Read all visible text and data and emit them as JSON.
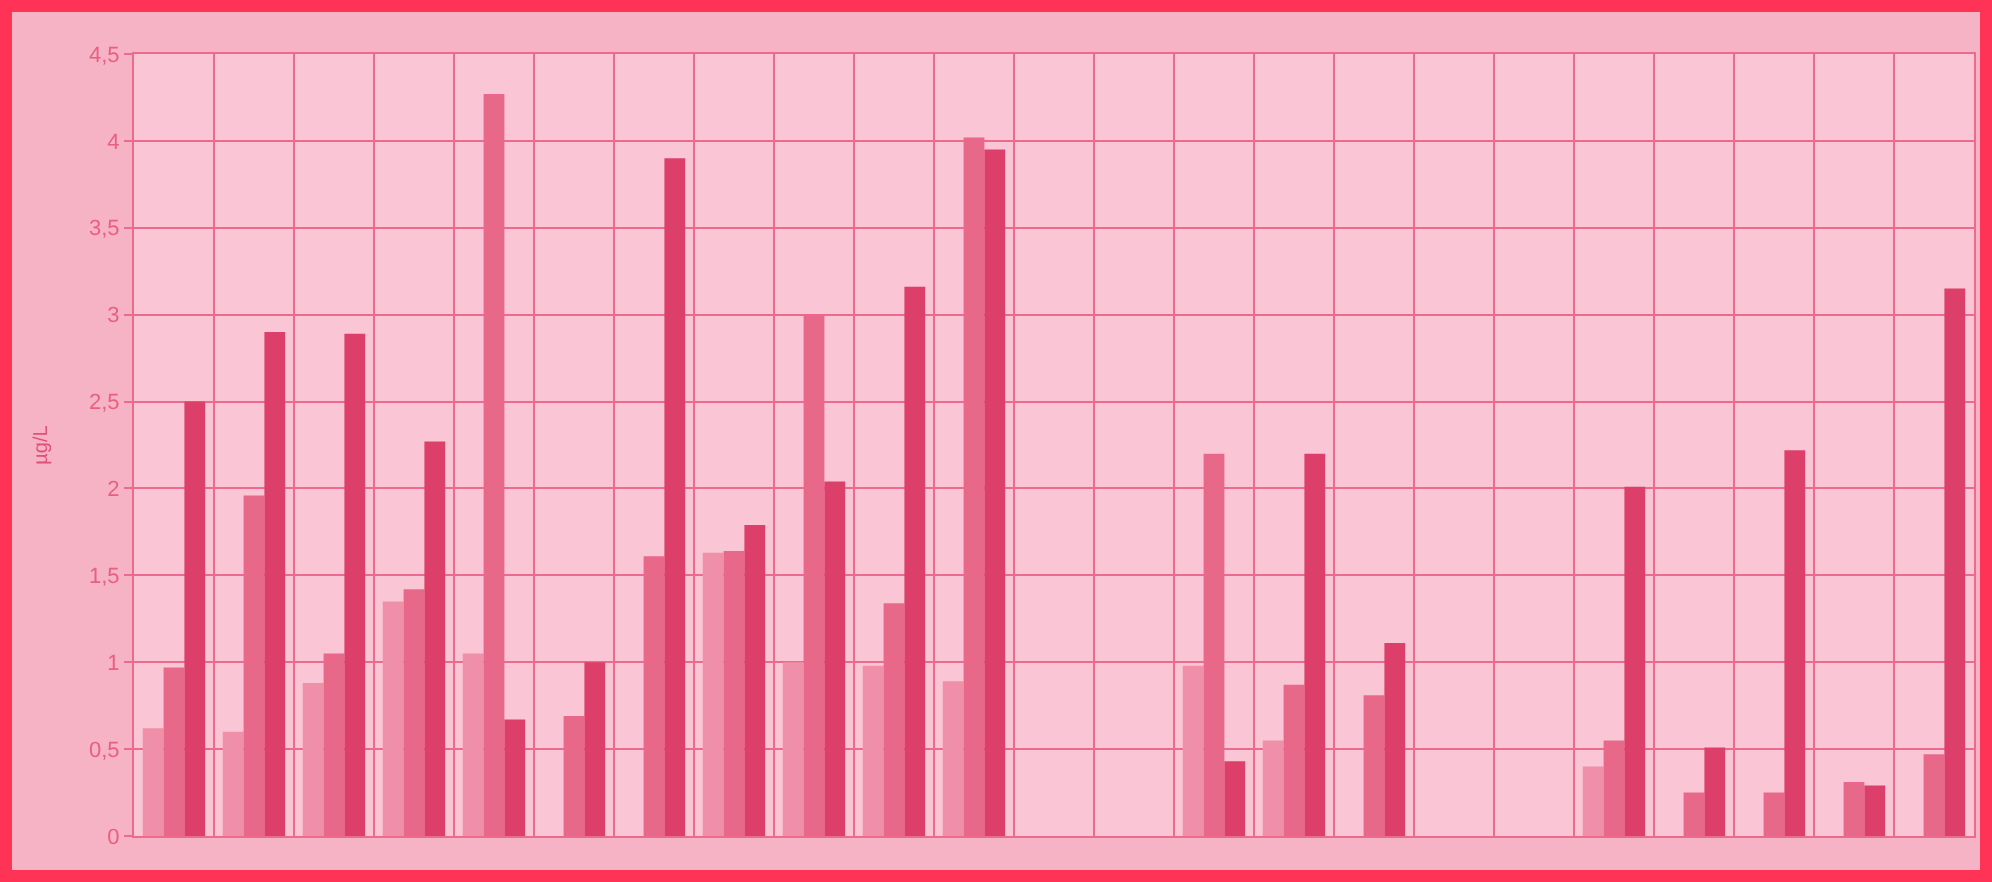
{
  "chart_data": {
    "type": "bar",
    "ylabel": "µg/L",
    "categories": [
      null,
      null,
      null,
      null,
      null,
      null,
      null,
      null,
      null,
      null,
      null,
      null,
      null,
      null,
      null,
      null,
      null,
      null,
      null,
      null,
      null,
      null,
      null
    ],
    "series": [
      {
        "color": "#f08fa8",
        "values": [
          0.62,
          0.6,
          0.88,
          1.35,
          1.05,
          null,
          null,
          1.63,
          1.0,
          0.98,
          0.89,
          null,
          null,
          0.98,
          0.55,
          null,
          null,
          null,
          0.4,
          null,
          null,
          null,
          null
        ]
      },
      {
        "color": "#e8688a",
        "values": [
          0.97,
          1.96,
          1.05,
          1.42,
          4.27,
          0.69,
          1.61,
          1.64,
          3.0,
          1.34,
          4.02,
          null,
          null,
          2.2,
          0.87,
          0.81,
          null,
          null,
          0.55,
          0.25,
          0.25,
          0.31,
          0.47
        ]
      },
      {
        "color": "#dc3f6a",
        "values": [
          2.5,
          2.9,
          2.89,
          2.27,
          0.67,
          1.0,
          3.9,
          1.79,
          2.04,
          3.16,
          3.95,
          null,
          null,
          0.43,
          2.2,
          1.11,
          null,
          null,
          2.01,
          0.51,
          2.22,
          0.29,
          3.15
        ]
      }
    ],
    "ylim": [
      0,
      4.5
    ],
    "yticks": [
      {
        "value": 0,
        "label": "0"
      },
      {
        "value": 0.5,
        "label": "0,5"
      },
      {
        "value": 1,
        "label": "1"
      },
      {
        "value": 1.5,
        "label": "1,5"
      },
      {
        "value": 2,
        "label": "2"
      },
      {
        "value": 2.5,
        "label": "2,5"
      },
      {
        "value": 3,
        "label": "3"
      },
      {
        "value": 3.5,
        "label": "3,5"
      },
      {
        "value": 4,
        "label": "4"
      },
      {
        "value": 4.5,
        "label": "4,5"
      }
    ],
    "grid": true
  }
}
